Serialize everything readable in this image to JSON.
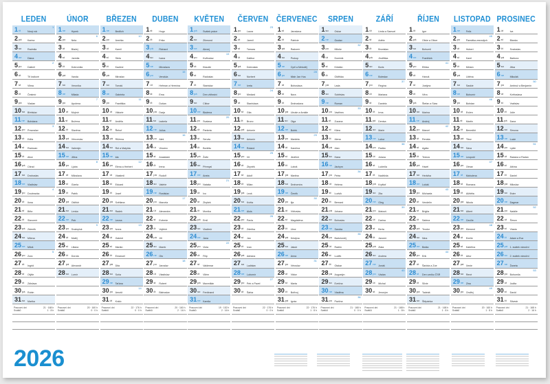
{
  "year": "2026",
  "weekday_abbr": [
    "po",
    "út",
    "st",
    "čt",
    "pá",
    "so",
    "ne"
  ],
  "footer_labels": {
    "workdays": "Pracovní dní",
    "holidays": "Svátků"
  },
  "colors": {
    "accent": "#1f8fd4",
    "saturday": "#e4eff9",
    "sunday_holiday": "#c9e0f3"
  },
  "months": [
    {
      "name": "LEDEN",
      "workdays": "21 · 168 h",
      "holidays": "1 · 8 h",
      "holiday_days": [
        1
      ],
      "names": [
        "Nový rok",
        "Karina",
        "Radmila",
        "Diana",
        "Dalimil",
        "Tři králové",
        "Vilma",
        "Čestmír",
        "Vladan",
        "Břetislav",
        "Bohdana",
        "Pravoslav",
        "Edita",
        "Radovan",
        "Alice",
        "Ctirad",
        "Drahoslav",
        "Vladislav",
        "Doubravka",
        "Ilona",
        "Běla",
        "Slavomír",
        "Zdeněk",
        "Milena",
        "Miloš",
        "Zora",
        "Ingrid",
        "Otýlie",
        "Zdislava",
        "Robin",
        "Marika"
      ]
    },
    {
      "name": "ÚNOR",
      "workdays": "20 · 160 h",
      "holidays": "0 · 0 h",
      "holiday_days": [],
      "names": [
        "Hynek",
        "Nela",
        "Blažej",
        "Jarmila",
        "Dobromila",
        "Vanda",
        "Veronika",
        "Milada",
        "Apolena",
        "Mojmír",
        "Božena",
        "Slavěna",
        "Věnceslav",
        "Valentýn",
        "Jiřina",
        "Ljuba",
        "Miloslava",
        "Gizela",
        "Patrik",
        "Oldřich",
        "Lenka",
        "Petr",
        "Svatopluk",
        "Matěj",
        "Liliana",
        "Dorota",
        "Alexandr",
        "Lumír"
      ]
    },
    {
      "name": "BŘEZEN",
      "workdays": "22 · 176 h",
      "holidays": "0 · 0 h",
      "holiday_days": [],
      "names": [
        "Bedřich",
        "Anežka",
        "Kamil",
        "Stela",
        "Kazimír",
        "Miroslav",
        "Tomáš",
        "Gabriela",
        "Františka",
        "Viktorie",
        "Anděla",
        "Řehoř",
        "Růžena",
        "Rút a Matylda",
        "Ida",
        "Elena a Herbert",
        "Vlastimil",
        "Eduard",
        "Josef",
        "Světlana",
        "Radek",
        "Leona",
        "Ivona",
        "Gabriel",
        "Marián",
        "Emanuel",
        "Dita",
        "Soňa",
        "Taťána",
        "Arnošt",
        "Kvido"
      ]
    },
    {
      "name": "DUBEN",
      "workdays": "20 · 160 h",
      "holidays": "2 · 16 h",
      "holiday_days": [
        3,
        6
      ],
      "names": [
        "Hugo",
        "Erika",
        "Richard",
        "Ivana",
        "Miroslava",
        "Vendula",
        "Heřman a Hermína",
        "Ema",
        "Dušan",
        "Darja",
        "Izabela",
        "Julius",
        "Aleš",
        "Vincenc",
        "Anastázie",
        "Irena",
        "Rudolf",
        "Valérie",
        "Rostislav",
        "Marcela",
        "Alexandra",
        "Evženie",
        "Vojtěch",
        "Jiří",
        "Marek",
        "Oto",
        "Jaroslav",
        "Vlastislav",
        "Robert",
        "Blahoslav"
      ]
    },
    {
      "name": "KVĚTEN",
      "workdays": "19 · 152 h",
      "holidays": "2 · 16 h",
      "holiday_days": [
        1,
        8
      ],
      "names": [
        "Svátek práce",
        "Zikmund",
        "Alexej",
        "Květoslav",
        "Klaudie",
        "Radoslav",
        "Stanislav",
        "Den vítězství",
        "Ctibor",
        "Blažena",
        "Svatava",
        "Pankrác",
        "Servác",
        "Bonifác",
        "Žofie",
        "Přemysl",
        "Aneta",
        "Nataša",
        "Ivo",
        "Zbyšek",
        "Monika",
        "Emil",
        "Vladimír",
        "Jana",
        "Viola",
        "Filip",
        "Valdemar",
        "Vilém",
        "Maxmilián",
        "Ferdinand",
        "Kamila"
      ]
    },
    {
      "name": "ČERVEN",
      "workdays": "22 · 176 h",
      "holidays": "0 · 0 h",
      "holiday_days": [],
      "names": [
        "Laura",
        "Jarmil",
        "Tamara",
        "Dalibor",
        "Dobroslav",
        "Norbert",
        "Iveta",
        "Medard",
        "Stanislava",
        "Gita",
        "Bruno",
        "Antonie",
        "Antonín",
        "Roland",
        "Vít",
        "Zbyněk",
        "Adolf",
        "Milan",
        "Leoš",
        "Květa",
        "Alois",
        "Pavla",
        "Zdeňka",
        "Jan",
        "Ivan",
        "Adriana",
        "Ladislav",
        "Lubomír",
        "Petr a Pavel",
        "Šárka"
      ]
    },
    {
      "name": "ČERVENEC",
      "workdays": "22 · 176 h",
      "holidays": "1 · 8 h",
      "holiday_days": [
        5,
        6
      ],
      "names": [
        "Jaroslava",
        "Patricie",
        "Radomír",
        "Prokop",
        "Cyril a Metoděj",
        "Mistr Jan Hus",
        "Bohuslava",
        "Nora",
        "Drahoslava",
        "Libuše a Amálie",
        "Olga",
        "Bořek",
        "Markéta",
        "Karolína",
        "Jindřich",
        "Luboš",
        "Martina",
        "Drahomíra",
        "Čeněk",
        "Ilja",
        "Vítězslav",
        "Magdaléna",
        "Libor",
        "Kristýna",
        "Jakub",
        "Anna",
        "Věroslav",
        "Viktor",
        "Marta",
        "Bořivoj",
        "Ignác"
      ]
    },
    {
      "name": "SRPEN",
      "workdays": "21 · 168 h",
      "holidays": "0 · 0 h",
      "holiday_days": [],
      "names": [
        "Oskar",
        "Gustav",
        "Miluše",
        "Dominik",
        "Kristián",
        "Oldřiška",
        "Lada",
        "Soběslav",
        "Roman",
        "Vavřinec",
        "Zuzana",
        "Klára",
        "Alena",
        "Alan",
        "Hana",
        "Jáchym",
        "Petra",
        "Helena",
        "Ludvík",
        "Bernard",
        "Johana",
        "Bohuslav",
        "Sandra",
        "Bartoloměj",
        "Radim",
        "Luděk",
        "Otakar",
        "Augustýn",
        "Evelína",
        "Vladěna",
        "Pavlína"
      ]
    },
    {
      "name": "ZÁŘÍ",
      "workdays": "21 · 168 h",
      "holidays": "1 · 8 h",
      "holiday_days": [
        28
      ],
      "names": [
        "Linda a Samuel",
        "Adéla",
        "Bronislav",
        "Jindřiška",
        "Boris",
        "Boleslav",
        "Regína",
        "Mariana",
        "Daniela",
        "Irma",
        "Denisa",
        "Marie",
        "Lubor",
        "Radka",
        "Jolana",
        "Ludmila",
        "Naděžda",
        "Kryštof",
        "Zita",
        "Oleg",
        "Matouš",
        "Darina",
        "Berta",
        "Jaromír",
        "Zlata",
        "Andrea",
        "Jonáš",
        "Václav",
        "Michal",
        "Jeroným"
      ]
    },
    {
      "name": "ŘÍJEN",
      "workdays": "21 · 168 h",
      "holidays": "1 · 8 h",
      "holiday_days": [
        28
      ],
      "names": [
        "Igor",
        "Olivie a Oliver",
        "Bohumil",
        "František",
        "Eliška",
        "Hanuš",
        "Justýna",
        "Věra",
        "Štefan a Sára",
        "Marina",
        "Andrej",
        "Marcel",
        "Renáta",
        "Agáta",
        "Tereza",
        "Havel",
        "Hedvika",
        "Lukáš",
        "Michaela",
        "Vendelín",
        "Brigita",
        "Sabina",
        "Teodor",
        "Nina",
        "Beáta",
        "Erik",
        "Šarlota a Zoe",
        "Den vzniku ČSR",
        "Silvie",
        "Tadeáš",
        "Štěpánka"
      ]
    },
    {
      "name": "LISTOPAD",
      "workdays": "20 · 160 h",
      "holidays": "1 · 8 h",
      "holiday_days": [
        17
      ],
      "names": [
        "Felix",
        "Památka zesnulých",
        "Hubert",
        "Karel",
        "Miriam",
        "Liběna",
        "Saskie",
        "Bohumír",
        "Bohdan",
        "Evžen",
        "Martin",
        "Benedikt",
        "Tibor",
        "Sáva",
        "Leopold",
        "Otmar",
        "Mahulena",
        "Romana",
        "Alžběta",
        "Nikola",
        "Albert",
        "Cecílie",
        "Klement",
        "Emílie",
        "Kateřina",
        "Artur",
        "Xenie",
        "René",
        "Zina",
        "Ondřej"
      ]
    },
    {
      "name": "PROSINEC",
      "workdays": "21 · 168 h",
      "holidays": "2 · 16 h",
      "holiday_days": [
        24,
        25,
        26
      ],
      "names": [
        "Iva",
        "Blanka",
        "Svatoslav",
        "Barbora",
        "Jitka",
        "Mikuláš",
        "Ambrož a Benjamín",
        "Květoslava",
        "Vratislav",
        "Julie",
        "Dana",
        "Simona",
        "Lucie",
        "Lýdie",
        "Radana a Radan",
        "Albína",
        "Daniel",
        "Miloslav",
        "Ester",
        "Dagmar",
        "Natálie",
        "Šimon",
        "Vlasta",
        "Adam a Eva",
        "1. svátek vánoční",
        "2. svátek vánoční",
        "Žaneta",
        "Bohumila",
        "Judita",
        "David",
        "Silvestr"
      ]
    }
  ]
}
